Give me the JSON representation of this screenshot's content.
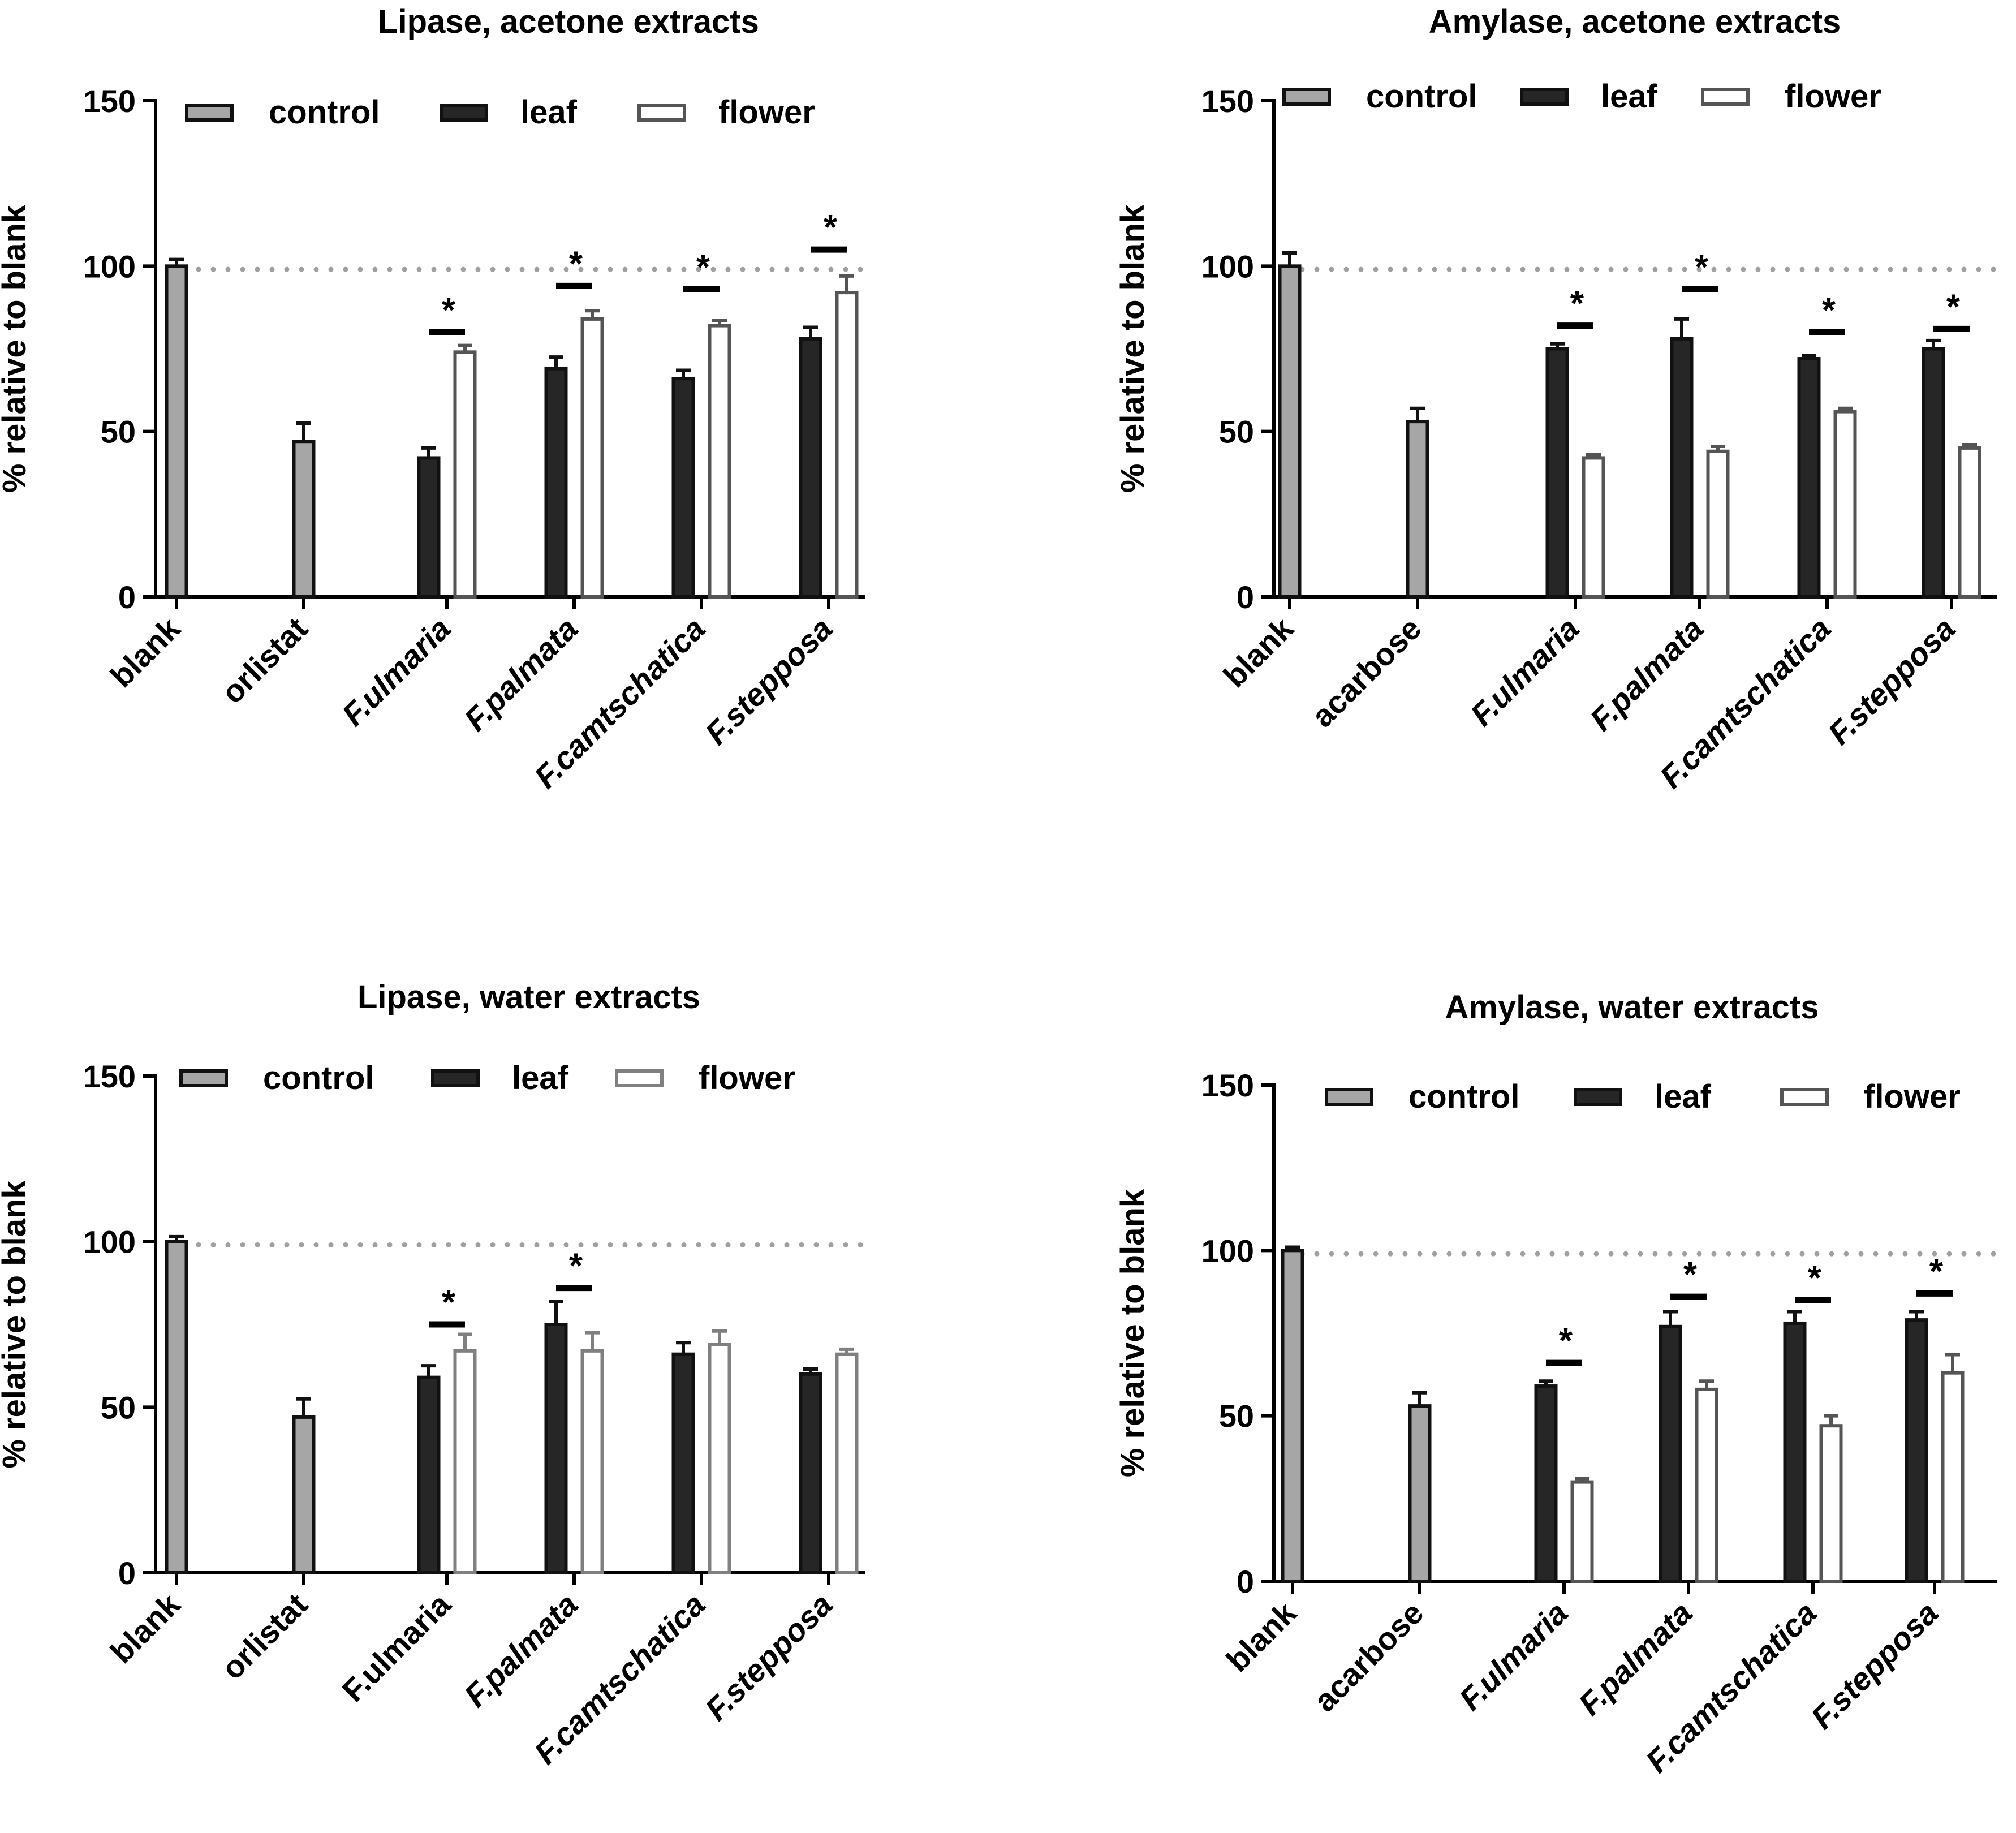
{
  "figure": {
    "colors": {
      "control": "#a6a6a6",
      "leaf": "#262626",
      "flower": "#ffffff",
      "flower_stroke": "#555555",
      "flower_stroke_light": "#808080",
      "axis": "#000000",
      "reference_line": "#a0a0a0"
    },
    "icons": {
      "reference_line": "dotted-reference-line",
      "significance": "significance-bar-with-asterisk"
    }
  },
  "chart_data": [
    {
      "type": "bar",
      "title": "Lipase, acetone extracts",
      "xlabel": "",
      "ylabel": "% relative to blank",
      "ylim": [
        0,
        150
      ],
      "yticks": [
        "0",
        "50",
        "100",
        "150"
      ],
      "categories": [
        "blank",
        "orlistat",
        "F.ulmaria",
        "F.palmata",
        "F.camtschatica",
        "F.stepposa"
      ],
      "italic_categories": [
        false,
        false,
        true,
        true,
        true,
        true
      ],
      "legend": [
        "control",
        "leaf",
        "flower"
      ],
      "legend_position": "top",
      "reference_line": 99,
      "series": [
        {
          "name": "control",
          "values": [
            100,
            47,
            null,
            null,
            null,
            null
          ],
          "errors": [
            2,
            5.5,
            null,
            null,
            null,
            null
          ]
        },
        {
          "name": "leaf",
          "values": [
            null,
            null,
            42,
            69,
            66,
            78
          ],
          "errors": [
            null,
            null,
            3,
            3.5,
            2.5,
            3.5
          ]
        },
        {
          "name": "flower",
          "values": [
            null,
            null,
            74,
            84,
            82,
            92
          ],
          "errors": [
            null,
            null,
            2,
            2.5,
            1.5,
            5
          ]
        }
      ],
      "significance": [
        {
          "category": "F.ulmaria",
          "level": 80,
          "label": "*"
        },
        {
          "category": "F.palmata",
          "level": 94,
          "label": "*"
        },
        {
          "category": "F.camtschatica",
          "level": 93,
          "label": "*"
        },
        {
          "category": "F.stepposa",
          "level": 105,
          "label": "*"
        }
      ]
    },
    {
      "type": "bar",
      "title": "Amylase, acetone extracts",
      "xlabel": "",
      "ylabel": "% relative to blank",
      "ylim": [
        0,
        150
      ],
      "yticks": [
        "0",
        "50",
        "100",
        "150"
      ],
      "categories": [
        "blank",
        "acarbose",
        "F.ulmaria",
        "F.palmata",
        "F.camtschatica",
        "F.stepposa"
      ],
      "italic_categories": [
        false,
        false,
        true,
        true,
        true,
        true
      ],
      "legend": [
        "control",
        "leaf",
        "flower"
      ],
      "legend_position": "top",
      "reference_line": 99,
      "series": [
        {
          "name": "control",
          "values": [
            100,
            53,
            null,
            null,
            null,
            null
          ],
          "errors": [
            4,
            4,
            null,
            null,
            null,
            null
          ]
        },
        {
          "name": "leaf",
          "values": [
            null,
            null,
            75,
            78,
            72,
            75
          ],
          "errors": [
            null,
            null,
            1.5,
            6,
            1,
            2.5
          ]
        },
        {
          "name": "flower",
          "values": [
            null,
            null,
            42,
            44,
            56,
            45
          ],
          "errors": [
            null,
            null,
            1,
            1.5,
            1,
            1
          ]
        }
      ],
      "significance": [
        {
          "category": "F.ulmaria",
          "level": 82,
          "label": "*"
        },
        {
          "category": "F.palmata",
          "level": 93,
          "label": "*"
        },
        {
          "category": "F.camtschatica",
          "level": 80,
          "label": "*"
        },
        {
          "category": "F.stepposa",
          "level": 81,
          "label": "*"
        }
      ]
    },
    {
      "type": "bar",
      "title": "Lipase, water extracts",
      "xlabel": "",
      "ylabel": "% relative to blank",
      "ylim": [
        0,
        150
      ],
      "yticks": [
        "0",
        "50",
        "100",
        "150"
      ],
      "categories": [
        "blank",
        "orlistat",
        "F.ulmaria",
        "F.palmata",
        "F.camtschatica",
        "F.stepposa"
      ],
      "italic_categories": [
        false,
        false,
        false,
        true,
        true,
        true
      ],
      "legend": [
        "control",
        "leaf",
        "flower"
      ],
      "legend_position": "top",
      "reference_line": 99,
      "series": [
        {
          "name": "control",
          "values": [
            100,
            47,
            null,
            null,
            null,
            null
          ],
          "errors": [
            1.5,
            5.5,
            null,
            null,
            null,
            null
          ]
        },
        {
          "name": "leaf",
          "values": [
            null,
            null,
            59,
            75,
            66,
            60
          ],
          "errors": [
            null,
            null,
            3.5,
            7,
            3.5,
            1.5
          ]
        },
        {
          "name": "flower",
          "values": [
            null,
            null,
            67,
            67,
            69,
            66
          ],
          "errors": [
            null,
            null,
            5,
            5.5,
            4,
            1.5
          ]
        }
      ],
      "significance": [
        {
          "category": "F.ulmaria",
          "level": 75,
          "label": "*"
        },
        {
          "category": "F.palmata",
          "level": 86,
          "label": "*"
        }
      ]
    },
    {
      "type": "bar",
      "title": "Amylase, water extracts",
      "xlabel": "",
      "ylabel": "% relative to blank",
      "ylim": [
        0,
        150
      ],
      "yticks": [
        "0",
        "50",
        "100",
        "150"
      ],
      "categories": [
        "blank",
        "acarbose",
        "F.ulmaria",
        "F.palmata",
        "F.camtschatica",
        "F.stepposa"
      ],
      "italic_categories": [
        false,
        false,
        true,
        true,
        true,
        true
      ],
      "legend": [
        "control",
        "leaf",
        "flower"
      ],
      "legend_position": "top",
      "reference_line": 99,
      "series": [
        {
          "name": "control",
          "values": [
            100,
            53,
            null,
            null,
            null,
            null
          ],
          "errors": [
            1,
            4,
            null,
            null,
            null,
            null
          ]
        },
        {
          "name": "leaf",
          "values": [
            null,
            null,
            59,
            77,
            78,
            79
          ],
          "errors": [
            null,
            null,
            1.5,
            4.5,
            3.5,
            2.5
          ]
        },
        {
          "name": "flower",
          "values": [
            null,
            null,
            30,
            58,
            47,
            63
          ],
          "errors": [
            null,
            null,
            1,
            2.5,
            3,
            5.5
          ]
        }
      ],
      "significance": [
        {
          "category": "F.ulmaria",
          "level": 66,
          "label": "*"
        },
        {
          "category": "F.palmata",
          "level": 86,
          "label": "*"
        },
        {
          "category": "F.camtschatica",
          "level": 85,
          "label": "*"
        },
        {
          "category": "F.stepposa",
          "level": 87,
          "label": "*"
        }
      ]
    }
  ]
}
